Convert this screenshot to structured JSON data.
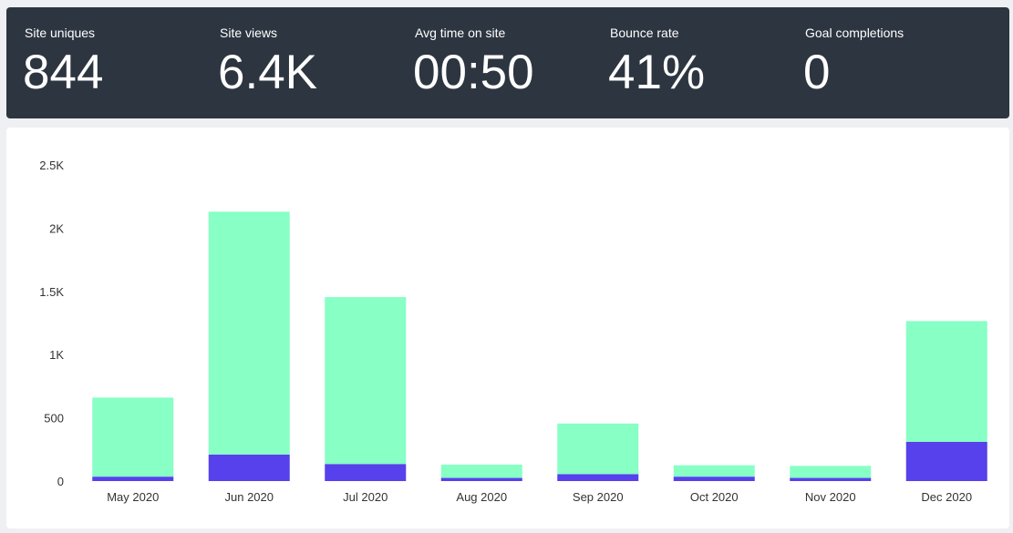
{
  "stats": [
    {
      "label": "Site uniques",
      "value": "844"
    },
    {
      "label": "Site views",
      "value": "6.4K"
    },
    {
      "label": "Avg time on site",
      "value": "00:50"
    },
    {
      "label": "Bounce rate",
      "value": "41%"
    },
    {
      "label": "Goal completions",
      "value": "0"
    }
  ],
  "chart_data": {
    "type": "bar",
    "stacked": true,
    "categories": [
      "May 2020",
      "Jun 2020",
      "Jul 2020",
      "Aug 2020",
      "Sep 2020",
      "Oct 2020",
      "Nov 2020",
      "Dec 2020"
    ],
    "series": [
      {
        "values": [
          35,
          210,
          135,
          25,
          55,
          35,
          25,
          310
        ],
        "color": "#5641ec"
      },
      {
        "values": [
          625,
          1920,
          1320,
          105,
          400,
          90,
          95,
          955
        ],
        "color": "#87ffc5"
      }
    ],
    "ylim": [
      0,
      2500
    ],
    "yticks": [
      0,
      500,
      1000,
      1500,
      2000,
      2500
    ],
    "ytick_labels": [
      "0",
      "500",
      "1K",
      "1.5K",
      "2K",
      "2.5K"
    ],
    "grid": false,
    "legend": "none"
  }
}
